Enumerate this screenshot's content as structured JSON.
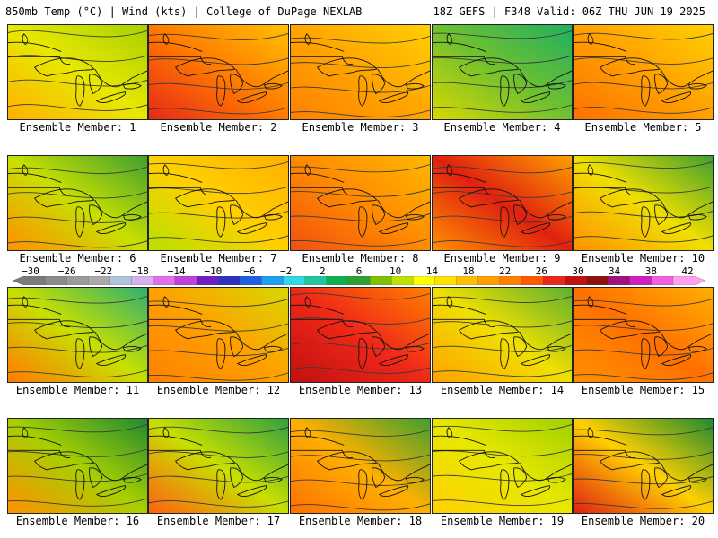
{
  "header": {
    "left": "850mb Temp (°C) | Wind (kts) | College of DuPage NEXLAB",
    "right": "18Z GEFS | F348 Valid: 06Z THU JUN 19 2025"
  },
  "label_prefix": "Ensemble Member: ",
  "members": [
    {
      "num": 1,
      "grad": [
        "#ffb000",
        "#e8e800",
        "#a8d000"
      ]
    },
    {
      "num": 2,
      "grad": [
        "#e82818",
        "#ff7a00",
        "#ffc000"
      ]
    },
    {
      "num": 3,
      "grad": [
        "#ff8000",
        "#ffa500",
        "#ffd000"
      ]
    },
    {
      "num": 4,
      "grad": [
        "#d8d800",
        "#70c030",
        "#20b060"
      ]
    },
    {
      "num": 5,
      "grad": [
        "#ff7000",
        "#ffa000",
        "#ffd000"
      ]
    },
    {
      "num": 6,
      "grad": [
        "#ff9000",
        "#c8e000",
        "#40a030"
      ]
    },
    {
      "num": 7,
      "grad": [
        "#b8e000",
        "#ffd000",
        "#ffb000"
      ]
    },
    {
      "num": 8,
      "grad": [
        "#f05010",
        "#ff8a00",
        "#ffb800"
      ]
    },
    {
      "num": 9,
      "grad": [
        "#ff9000",
        "#e02010",
        "#ffa000"
      ]
    },
    {
      "num": 10,
      "grad": [
        "#ff9000",
        "#f0e000",
        "#40a030"
      ]
    },
    {
      "num": 11,
      "grad": [
        "#ff7a00",
        "#c8e000",
        "#30b070"
      ]
    },
    {
      "num": 12,
      "grad": [
        "#ff8000",
        "#ffa000",
        "#d8d800"
      ]
    },
    {
      "num": 13,
      "grad": [
        "#c01010",
        "#f02818",
        "#ff8000"
      ]
    },
    {
      "num": 14,
      "grad": [
        "#ffa000",
        "#f0e000",
        "#60b030"
      ]
    },
    {
      "num": 15,
      "grad": [
        "#ff9000",
        "#ff7000",
        "#ffb000"
      ]
    },
    {
      "num": 16,
      "grad": [
        "#ff9000",
        "#a8d000",
        "#208a30"
      ]
    },
    {
      "num": 17,
      "grad": [
        "#ff6010",
        "#c8e000",
        "#30a040"
      ]
    },
    {
      "num": 18,
      "grad": [
        "#ff7000",
        "#ffb000",
        "#40a030"
      ]
    },
    {
      "num": 19,
      "grad": [
        "#ffd000",
        "#e8e800",
        "#a0d000"
      ]
    },
    {
      "num": 20,
      "grad": [
        "#e02010",
        "#ffd000",
        "#208a30"
      ]
    }
  ],
  "colorbar": {
    "ticks": [
      "−30",
      "−26",
      "−22",
      "−18",
      "−14",
      "−10",
      "−6",
      "−2",
      "2",
      "6",
      "10",
      "14",
      "18",
      "22",
      "26",
      "30",
      "34",
      "38",
      "42"
    ],
    "colors": [
      "#7a7a7a",
      "#8a8a8a",
      "#9a9a9a",
      "#aaaaaa",
      "#b0c4de",
      "#d8b0f0",
      "#e070e8",
      "#c040d8",
      "#7020c0",
      "#3030c0",
      "#2060e0",
      "#20a0f0",
      "#30d8e8",
      "#20c8a0",
      "#10b050",
      "#30a030",
      "#80c000",
      "#c0e000",
      "#ffff00",
      "#ffe000",
      "#ffc000",
      "#ffa000",
      "#ff8000",
      "#ff5a00",
      "#e82818",
      "#c01010",
      "#901010",
      "#a01080",
      "#d020c0",
      "#f060e0",
      "#ffa0f0"
    ]
  }
}
